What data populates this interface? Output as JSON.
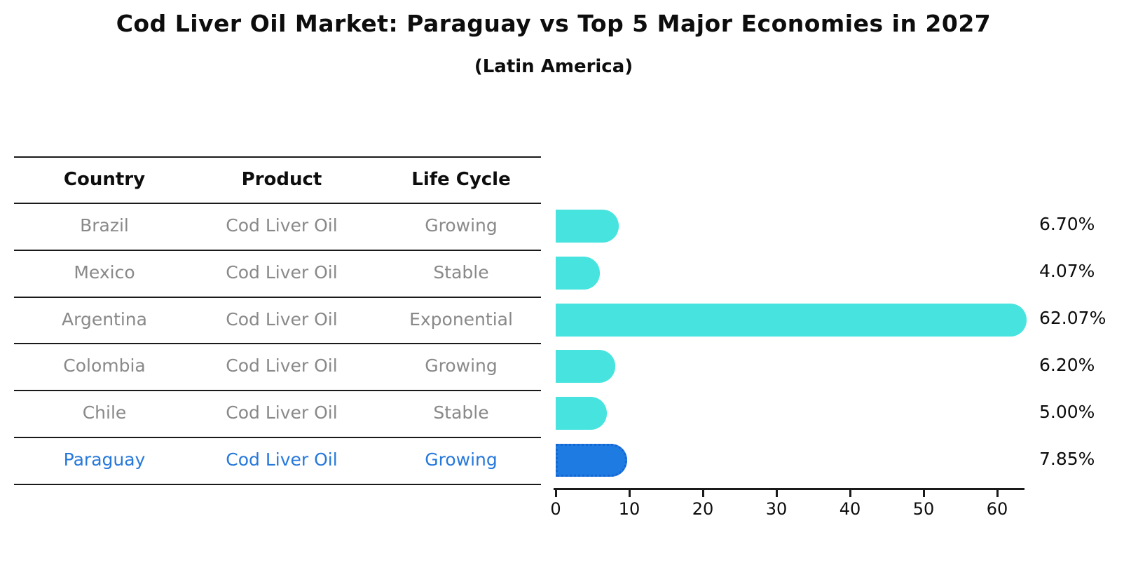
{
  "title": "Cod Liver Oil Market: Paraguay vs Top 5 Major Economies in 2027",
  "subtitle": "(Latin America)",
  "table": {
    "headers": [
      "Country",
      "Product",
      "Life Cycle"
    ],
    "rows": [
      {
        "country": "Brazil",
        "product": "Cod Liver Oil",
        "life_cycle": "Growing",
        "highlighted": false
      },
      {
        "country": "Mexico",
        "product": "Cod Liver Oil",
        "life_cycle": "Stable",
        "highlighted": false
      },
      {
        "country": "Argentina",
        "product": "Cod Liver Oil",
        "life_cycle": "Exponential",
        "highlighted": false
      },
      {
        "country": "Colombia",
        "product": "Cod Liver Oil",
        "life_cycle": "Growing",
        "highlighted": false
      },
      {
        "country": "Chile",
        "product": "Cod Liver Oil",
        "life_cycle": "Stable",
        "highlighted": false
      },
      {
        "country": "Paraguay",
        "product": "Cod Liver Oil",
        "life_cycle": "Growing",
        "highlighted": true
      }
    ]
  },
  "chart_data": {
    "type": "bar",
    "orientation": "horizontal",
    "title": "Cod Liver Oil Market: Paraguay vs Top 5 Major Economies in 2027 (Latin America)",
    "categories": [
      "Brazil",
      "Mexico",
      "Argentina",
      "Colombia",
      "Chile",
      "Paraguay"
    ],
    "values": [
      6.7,
      4.07,
      62.07,
      6.2,
      5.0,
      7.85
    ],
    "value_labels": [
      "6.70%",
      "4.07%",
      "62.07%",
      "6.20%",
      "5.00%",
      "7.85%"
    ],
    "highlight_index": 5,
    "x_ticks": [
      "0",
      "10",
      "20",
      "30",
      "40",
      "50",
      "60"
    ],
    "x_tick_values": [
      0,
      10,
      20,
      30,
      40,
      50,
      60
    ],
    "xlim": [
      0,
      63.3
    ],
    "grid": false,
    "legend": "none",
    "bar_color": "#47e4df",
    "highlight_bar_color": "#1e7be1",
    "highlight_text_color": "#2678db"
  }
}
